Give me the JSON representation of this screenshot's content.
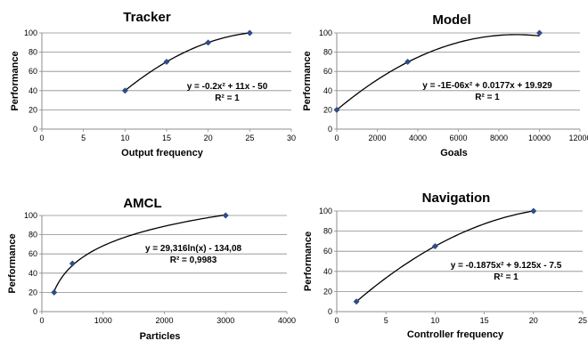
{
  "chart_data": [
    {
      "type": "scatter",
      "title": "Tracker",
      "xlabel": "Output frequency",
      "ylabel": "Performance",
      "xlim": [
        0,
        30
      ],
      "ylim": [
        0,
        100
      ],
      "xticks": [
        "0",
        "5",
        "10",
        "15",
        "20",
        "25",
        "30"
      ],
      "yticks": [
        "0",
        "20",
        "40",
        "60",
        "80",
        "100"
      ],
      "x": [
        10,
        15,
        20,
        25
      ],
      "y": [
        40,
        70,
        90,
        100
      ],
      "trendline": {
        "type": "poly2",
        "a": -0.2,
        "b": 11,
        "c": -50
      },
      "equation": "y = -0.2x² + 11x - 50",
      "r2": "R² = 1",
      "grid": "horizontal",
      "marker_color": "#2e4d8a"
    },
    {
      "type": "scatter",
      "title": "Model",
      "xlabel": "Goals",
      "ylabel": "Performance",
      "xlim": [
        0,
        12000
      ],
      "ylim": [
        0,
        100
      ],
      "xticks": [
        "0",
        "2000",
        "4000",
        "6000",
        "8000",
        "10000",
        "12000"
      ],
      "yticks": [
        "0",
        "20",
        "40",
        "60",
        "80",
        "100"
      ],
      "x": [
        0,
        3500,
        10000
      ],
      "y": [
        20,
        70,
        100
      ],
      "trendline": {
        "type": "poly2",
        "a": -1e-06,
        "b": 0.0177,
        "c": 19.929
      },
      "equation": "y = -1E-06x² + 0.0177x + 19.929",
      "r2": "R² = 1",
      "grid": "horizontal",
      "marker_color": "#2e4d8a"
    },
    {
      "type": "scatter",
      "title": "AMCL",
      "xlabel": "Particles",
      "ylabel": "Performance",
      "xlim": [
        0,
        4000
      ],
      "ylim": [
        0,
        100
      ],
      "xticks": [
        "0",
        "1000",
        "2000",
        "3000",
        "4000"
      ],
      "yticks": [
        "0",
        "20",
        "40",
        "60",
        "80",
        "100"
      ],
      "x": [
        200,
        500,
        3000
      ],
      "y": [
        20,
        50,
        100
      ],
      "trendline": {
        "type": "log",
        "a": 29.316,
        "b": -134.08
      },
      "equation": "y = 29,316ln(x) - 134,08",
      "r2": "R² = 0,9983",
      "grid": "horizontal",
      "marker_color": "#2e4d8a"
    },
    {
      "type": "scatter",
      "title": "Navigation",
      "xlabel": "Controller frequency",
      "ylabel": "Performance",
      "xlim": [
        0,
        25
      ],
      "ylim": [
        0,
        100
      ],
      "xticks": [
        "0",
        "5",
        "10",
        "15",
        "20",
        "25"
      ],
      "yticks": [
        "0",
        "20",
        "40",
        "60",
        "80",
        "100"
      ],
      "x": [
        2,
        10,
        20
      ],
      "y": [
        10,
        65,
        100
      ],
      "trendline": {
        "type": "poly2",
        "a": -0.1875,
        "b": 9.125,
        "c": -7.5
      },
      "equation": "y = -0.1875x² + 9.125x - 7.5",
      "r2": "R² = 1",
      "grid": "horizontal",
      "marker_color": "#2e4d8a"
    }
  ]
}
